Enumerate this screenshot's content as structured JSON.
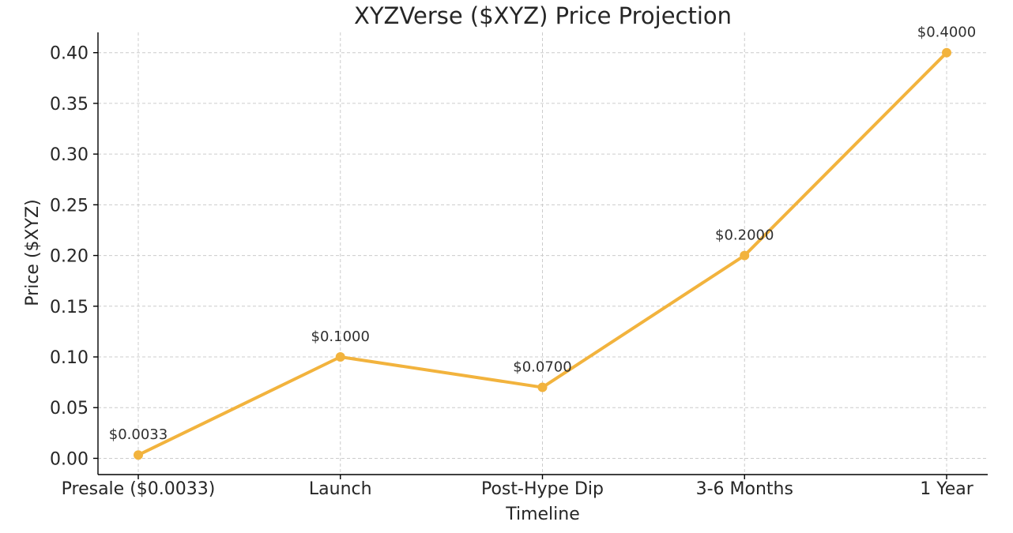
{
  "chart_data": {
    "type": "line",
    "title": "XYZVerse ($XYZ) Price Projection",
    "xlabel": "Timeline",
    "ylabel": "Price ($XYZ)",
    "categories": [
      "Presale ($0.0033)",
      "Launch",
      "Post-Hype Dip",
      "3-6 Months",
      "1 Year"
    ],
    "series": [
      {
        "values": [
          0.0033,
          0.1,
          0.07,
          0.2,
          0.4
        ],
        "color": "#F2B33D"
      }
    ],
    "data_labels": [
      "$0.0033",
      "$0.1000",
      "$0.0700",
      "$0.2000",
      "$0.4000"
    ],
    "ylim": [
      -0.016,
      0.42
    ],
    "yticks": [
      0.0,
      0.05,
      0.1,
      0.15,
      0.2,
      0.25,
      0.3,
      0.35,
      0.4
    ],
    "ytick_labels": [
      "0.00",
      "0.05",
      "0.10",
      "0.15",
      "0.20",
      "0.25",
      "0.30",
      "0.35",
      "0.40"
    ],
    "grid": true,
    "legend": "none"
  }
}
